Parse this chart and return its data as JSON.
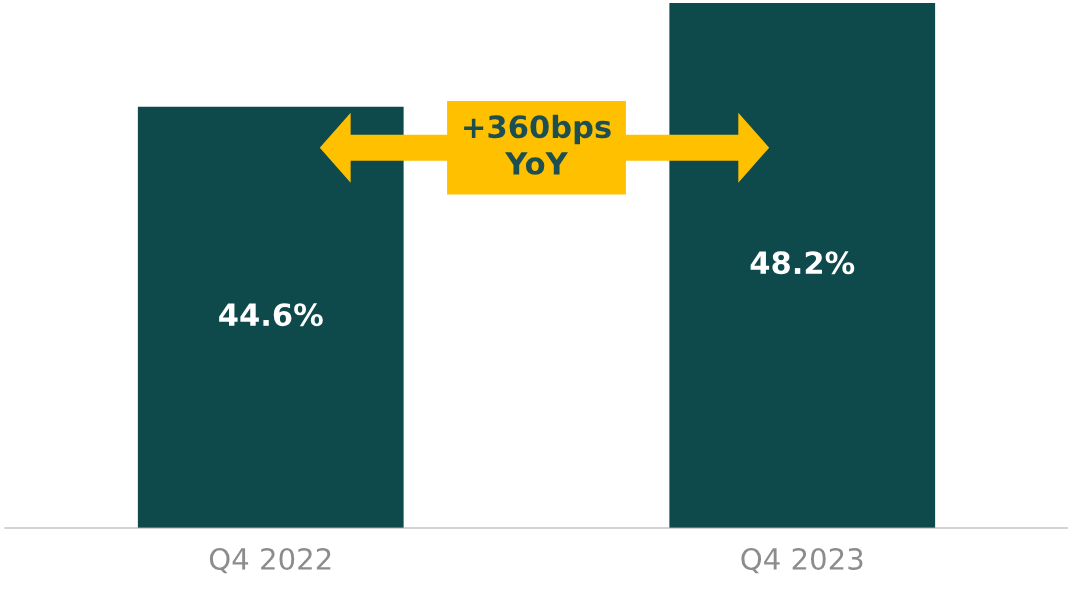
{
  "chart_data": {
    "type": "bar",
    "categories": [
      "Q4 2022",
      "Q4 2023"
    ],
    "values": [
      44.6,
      48.2
    ],
    "value_labels": [
      "44.6%",
      "48.2%"
    ],
    "color": "#0e4a4b",
    "ylim": [
      30,
      48.3
    ],
    "tick_labels": "x",
    "grid": false,
    "legend": false,
    "annotations": [
      "+360bps\nYoY"
    ]
  }
}
